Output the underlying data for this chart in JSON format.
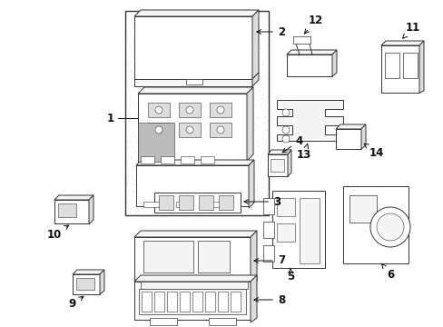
{
  "bg_color": "#ffffff",
  "lc": "#333333",
  "fc_light": "#f5f5f5",
  "fc_gray": "#dddddd",
  "fc_dark": "#bbbbbb",
  "stipple_color": "#cccccc",
  "figsize": [
    4.89,
    3.6
  ],
  "dpi": 100
}
